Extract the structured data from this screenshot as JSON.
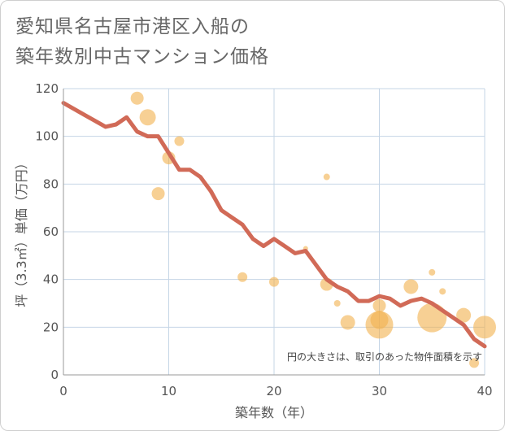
{
  "title_line1": "愛知県名古屋市港区入船の",
  "title_line2": "築年数別中古マンション価格",
  "note": "円の大きさは、取引のあった物件面積を示す",
  "chart_data": {
    "type": "scatter",
    "xlabel": "築年数（年）",
    "ylabel": "坪（3.3㎡）単価（万円）",
    "xlim": [
      0,
      40
    ],
    "ylim": [
      0,
      120
    ],
    "xticks": [
      0,
      10,
      20,
      30,
      40
    ],
    "yticks": [
      0,
      20,
      40,
      60,
      80,
      100,
      120
    ],
    "grid": true,
    "colors": {
      "bubble": "#f2b04c",
      "line": "#d16a57",
      "grid": "#c5d5e6",
      "axis": "#999999"
    },
    "line": {
      "x": [
        0,
        2,
        4,
        5,
        6,
        7,
        8,
        9,
        10,
        11,
        12,
        13,
        14,
        15,
        16,
        17,
        18,
        19,
        20,
        21,
        22,
        23,
        24,
        25,
        26,
        27,
        28,
        29,
        30,
        31,
        32,
        33,
        34,
        35,
        36,
        37,
        38,
        39,
        40
      ],
      "y": [
        114,
        109,
        104,
        105,
        108,
        102,
        100,
        100,
        93,
        86,
        86,
        83,
        77,
        69,
        66,
        63,
        57,
        54,
        57,
        54,
        51,
        52,
        46,
        40,
        37,
        35,
        31,
        31,
        33,
        32,
        29,
        31,
        32,
        30,
        27,
        24,
        21,
        15,
        12
      ]
    },
    "bubbles": [
      {
        "x": 7,
        "y": 116,
        "size": 8
      },
      {
        "x": 8,
        "y": 108,
        "size": 10
      },
      {
        "x": 10,
        "y": 91,
        "size": 8
      },
      {
        "x": 11,
        "y": 98,
        "size": 6
      },
      {
        "x": 9,
        "y": 76,
        "size": 8
      },
      {
        "x": 17,
        "y": 41,
        "size": 6
      },
      {
        "x": 20,
        "y": 39,
        "size": 6
      },
      {
        "x": 23,
        "y": 53,
        "size": 3
      },
      {
        "x": 25,
        "y": 83,
        "size": 4
      },
      {
        "x": 25,
        "y": 38,
        "size": 8
      },
      {
        "x": 26,
        "y": 30,
        "size": 4
      },
      {
        "x": 27,
        "y": 22,
        "size": 9
      },
      {
        "x": 30,
        "y": 29,
        "size": 8
      },
      {
        "x": 30,
        "y": 23,
        "size": 11
      },
      {
        "x": 30,
        "y": 21,
        "size": 17
      },
      {
        "x": 33,
        "y": 37,
        "size": 9
      },
      {
        "x": 35,
        "y": 43,
        "size": 4
      },
      {
        "x": 35,
        "y": 24,
        "size": 18
      },
      {
        "x": 36,
        "y": 35,
        "size": 4
      },
      {
        "x": 38,
        "y": 25,
        "size": 9
      },
      {
        "x": 39,
        "y": 5,
        "size": 6
      },
      {
        "x": 40,
        "y": 20,
        "size": 14
      }
    ]
  }
}
